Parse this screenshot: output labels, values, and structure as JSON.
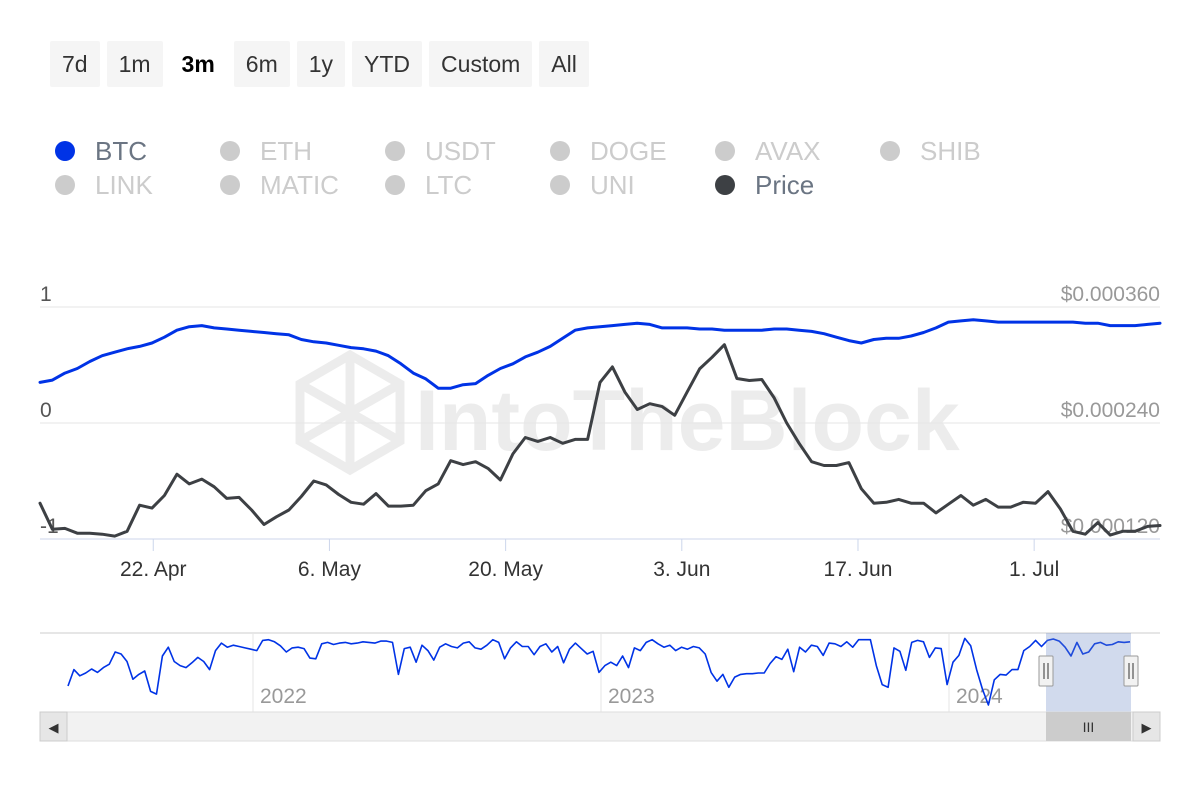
{
  "range_selector": {
    "buttons": [
      "7d",
      "1m",
      "3m",
      "6m",
      "1y",
      "YTD",
      "Custom",
      "All"
    ],
    "active": "3m"
  },
  "legend": {
    "items": [
      {
        "label": "BTC",
        "active": true,
        "color": "#0033e6"
      },
      {
        "label": "ETH",
        "active": false
      },
      {
        "label": "USDT",
        "active": false
      },
      {
        "label": "DOGE",
        "active": false
      },
      {
        "label": "AVAX",
        "active": false
      },
      {
        "label": "SHIB",
        "active": false
      },
      {
        "label": "LINK",
        "active": false
      },
      {
        "label": "MATIC",
        "active": false
      },
      {
        "label": "LTC",
        "active": false
      },
      {
        "label": "UNI",
        "active": false
      },
      {
        "label": "Price",
        "active": true,
        "color": "#3d4044"
      }
    ]
  },
  "watermark": "IntoTheBlock",
  "chart_data": {
    "type": "line",
    "x_start": "2024-04-13",
    "x_end": "2024-07-11",
    "x_ticks": [
      {
        "date": "2024-04-22",
        "label": "22. Apr"
      },
      {
        "date": "2024-05-06",
        "label": "6. May"
      },
      {
        "date": "2024-05-20",
        "label": "20. May"
      },
      {
        "date": "2024-06-03",
        "label": "3. Jun"
      },
      {
        "date": "2024-06-17",
        "label": "17. Jun"
      },
      {
        "date": "2024-07-01",
        "label": "1. Jul"
      }
    ],
    "y_left": {
      "range": [
        -1,
        1
      ],
      "ticks": [
        "1",
        "0",
        "-1"
      ]
    },
    "y_right": {
      "range": [
        0.00012,
        0.00036
      ],
      "ticks": [
        "$0.000360",
        "$0.000240",
        "$0.000120"
      ]
    },
    "grid": true,
    "legend_position": "top-left",
    "series": [
      {
        "name": "BTC",
        "axis": "left",
        "color": "#0033e6",
        "values": [
          0.35,
          0.37,
          0.43,
          0.47,
          0.53,
          0.58,
          0.61,
          0.64,
          0.66,
          0.69,
          0.74,
          0.8,
          0.83,
          0.84,
          0.82,
          0.81,
          0.8,
          0.79,
          0.78,
          0.77,
          0.76,
          0.72,
          0.7,
          0.69,
          0.67,
          0.65,
          0.64,
          0.62,
          0.58,
          0.51,
          0.43,
          0.38,
          0.3,
          0.3,
          0.33,
          0.34,
          0.41,
          0.47,
          0.51,
          0.57,
          0.61,
          0.66,
          0.73,
          0.8,
          0.82,
          0.83,
          0.84,
          0.85,
          0.86,
          0.85,
          0.82,
          0.82,
          0.82,
          0.81,
          0.81,
          0.8,
          0.8,
          0.8,
          0.8,
          0.81,
          0.81,
          0.8,
          0.79,
          0.77,
          0.74,
          0.71,
          0.69,
          0.72,
          0.73,
          0.73,
          0.75,
          0.78,
          0.82,
          0.87,
          0.88,
          0.89,
          0.88,
          0.87,
          0.87,
          0.87,
          0.87,
          0.87,
          0.87,
          0.87,
          0.86,
          0.86,
          0.84,
          0.84,
          0.84,
          0.85,
          0.86
        ]
      },
      {
        "name": "Price",
        "axis": "right",
        "color": "#3d4044",
        "values": [
          0.000157,
          0.00013,
          0.000131,
          0.000126,
          0.000126,
          0.000125,
          0.000123,
          0.000128,
          0.000155,
          0.000152,
          0.000165,
          0.000187,
          0.000177,
          0.000182,
          0.000174,
          0.000162,
          0.000163,
          0.00015,
          0.000135,
          0.000143,
          0.00015,
          0.000164,
          0.00018,
          0.000176,
          0.000166,
          0.000158,
          0.000156,
          0.000167,
          0.000154,
          0.000154,
          0.000155,
          0.00017,
          0.000177,
          0.000201,
          0.000197,
          0.0002,
          0.000193,
          0.000181,
          0.000208,
          0.000225,
          0.000221,
          0.000225,
          0.000219,
          0.000223,
          0.000223,
          0.000282,
          0.000298,
          0.000272,
          0.000254,
          0.00026,
          0.000257,
          0.000248,
          0.000272,
          0.000296,
          0.000308,
          0.000321,
          0.000286,
          0.000284,
          0.000285,
          0.000266,
          0.00024,
          0.000219,
          0.0002,
          0.000196,
          0.000196,
          0.000199,
          0.000172,
          0.000157,
          0.000158,
          0.000161,
          0.000157,
          0.000157,
          0.000147,
          0.000156,
          0.000165,
          0.000155,
          0.000161,
          0.000153,
          0.000153,
          0.000158,
          0.000157,
          0.000169,
          0.000151,
          0.000128,
          0.000125,
          0.000137,
          0.000124,
          0.000128,
          0.000128,
          0.000133,
          0.000134
        ]
      }
    ]
  },
  "navigator": {
    "year_labels": [
      "2022",
      "2023",
      "2024"
    ],
    "series_color": "#0033e6",
    "values": [
      0.28,
      0.52,
      0.43,
      0.47,
      0.53,
      0.48,
      0.55,
      0.6,
      0.78,
      0.75,
      0.64,
      0.38,
      0.45,
      0.5,
      0.2,
      0.16,
      0.72,
      0.85,
      0.64,
      0.58,
      0.55,
      0.62,
      0.7,
      0.64,
      0.52,
      0.8,
      0.91,
      0.85,
      0.88,
      0.86,
      0.84,
      0.82,
      0.8,
      0.95,
      0.96,
      0.93,
      0.87,
      0.78,
      0.84,
      0.85,
      0.83,
      0.69,
      0.68,
      0.9,
      0.92,
      0.89,
      0.91,
      0.92,
      0.9,
      0.91,
      0.93,
      0.92,
      0.91,
      0.94,
      0.94,
      0.92,
      0.45,
      0.83,
      0.85,
      0.63,
      0.88,
      0.8,
      0.66,
      0.85,
      0.9,
      0.86,
      0.84,
      0.91,
      0.93,
      0.84,
      0.82,
      0.88,
      0.96,
      0.92,
      0.68,
      0.84,
      0.93,
      0.86,
      0.86,
      0.74,
      0.86,
      0.9,
      0.78,
      0.86,
      0.62,
      0.82,
      0.91,
      0.83,
      0.75,
      0.79,
      0.48,
      0.58,
      0.63,
      0.58,
      0.72,
      0.55,
      0.84,
      0.8,
      0.92,
      0.96,
      0.9,
      0.85,
      0.88,
      0.8,
      0.85,
      0.82,
      0.86,
      0.84,
      0.75,
      0.48,
      0.35,
      0.45,
      0.26,
      0.41,
      0.45,
      0.46,
      0.46,
      0.47,
      0.47,
      0.61,
      0.71,
      0.67,
      0.82,
      0.49,
      0.85,
      0.78,
      0.88,
      0.86,
      0.73,
      0.91,
      0.9,
      0.86,
      0.93,
      0.85,
      0.96,
      0.96,
      0.96,
      0.58,
      0.3,
      0.26,
      0.84,
      0.79,
      0.51,
      0.92,
      0.95,
      0.93,
      0.7,
      0.84,
      0.83,
      0.3,
      0.63,
      0.73,
      0.98,
      0.87,
      0.52,
      0.23,
      0.0,
      0.37,
      0.45,
      0.44,
      0.52,
      0.52,
      0.8,
      0.86,
      0.95,
      0.86,
      0.95,
      0.97,
      0.94,
      0.85,
      0.72,
      0.92,
      0.75,
      0.78,
      0.9,
      0.92,
      0.88,
      0.89,
      0.93,
      0.92,
      0.93
    ]
  },
  "navigator_scrollbar": {
    "left_arrow": "◀",
    "right_arrow": "▶",
    "grip": "III"
  }
}
